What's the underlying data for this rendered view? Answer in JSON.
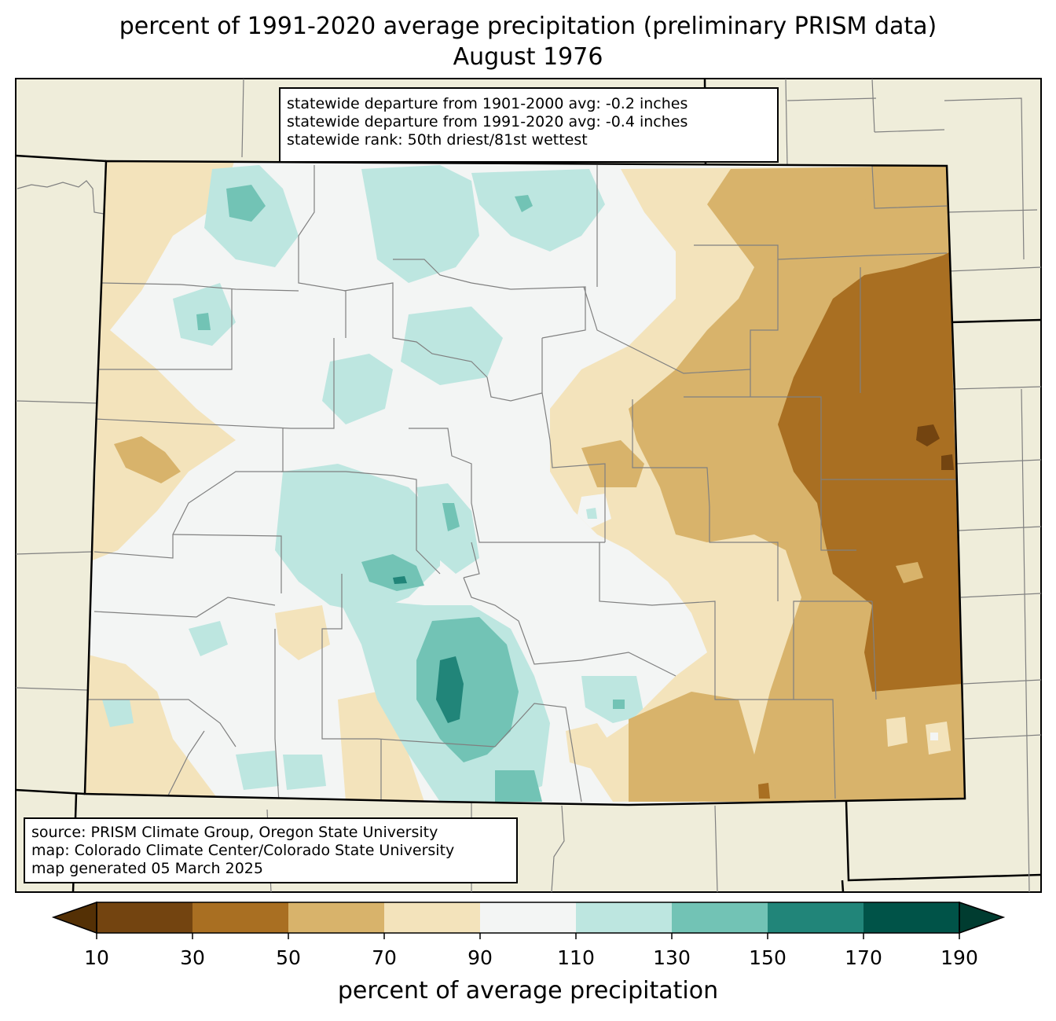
{
  "title": {
    "line1": "percent of 1991-2020 average precipitation (preliminary PRISM data)",
    "line2": "August 1976"
  },
  "stats_box": {
    "line1": "statewide departure from 1901-2000 avg: -0.2 inches",
    "line2": "statewide departure from 1991-2020 avg: -0.4 inches",
    "line3": "statewide rank: 50th driest/81st wettest"
  },
  "source_box": {
    "line1": "source: PRISM Climate Group, Oregon State University",
    "line2": "map: Colorado Climate Center/Colorado State University",
    "line3": "map generated 05 March 2025"
  },
  "colorbar": {
    "label": "percent of average precipitation",
    "ticks": [
      "10",
      "30",
      "50",
      "70",
      "90",
      "110",
      "130",
      "150",
      "170",
      "190"
    ],
    "bins": [
      {
        "range": "10-30",
        "color": "#734410"
      },
      {
        "range": "30-50",
        "color": "#a96f22"
      },
      {
        "range": "50-70",
        "color": "#d8b36b"
      },
      {
        "range": "70-90",
        "color": "#f3e3bb"
      },
      {
        "range": "90-110",
        "color": "#f3f5f4"
      },
      {
        "range": "110-130",
        "color": "#bde6e0"
      },
      {
        "range": "130-150",
        "color": "#72c3b5"
      },
      {
        "range": "150-170",
        "color": "#218579"
      },
      {
        "range": "170-190",
        "color": "#005348"
      }
    ],
    "under_color": "#543005",
    "over_color": "#003c30"
  },
  "map_colors": {
    "background": "#efedda",
    "state_border": "#000000",
    "county_border": "#808080"
  }
}
